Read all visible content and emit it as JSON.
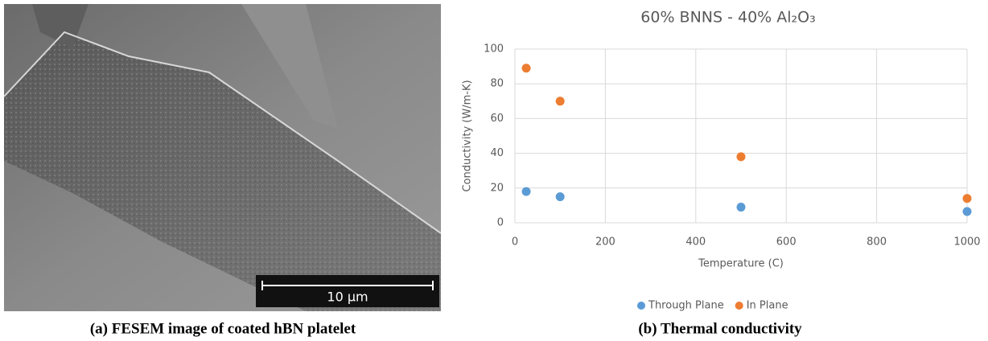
{
  "figure_a": {
    "scale_bar_label": "10 µm",
    "caption": "(a)  FESEM image of coated hBN platelet"
  },
  "chart_data": {
    "type": "scatter",
    "title": "60% BNNS - 40% Al₂O₃",
    "x_label": "Temperature (C)",
    "y_label": "Conductivity (W/m-K)",
    "x": [
      25,
      100,
      500,
      1000
    ],
    "series": [
      {
        "name": "Through Plane",
        "color": "#5b9bd5",
        "values": [
          18,
          15,
          9,
          6.5
        ]
      },
      {
        "name": "In Plane",
        "color": "#ed7d31",
        "values": [
          89,
          70,
          38,
          14
        ]
      }
    ],
    "xlim": [
      0,
      1000
    ],
    "ylim": [
      0,
      100
    ],
    "xticks": [
      0,
      200,
      400,
      600,
      800,
      1000
    ],
    "yticks": [
      0,
      20,
      40,
      60,
      80,
      100
    ],
    "grid": true,
    "legend": "bottom"
  },
  "figure_b": {
    "caption": "(b)  Thermal conductivity"
  }
}
